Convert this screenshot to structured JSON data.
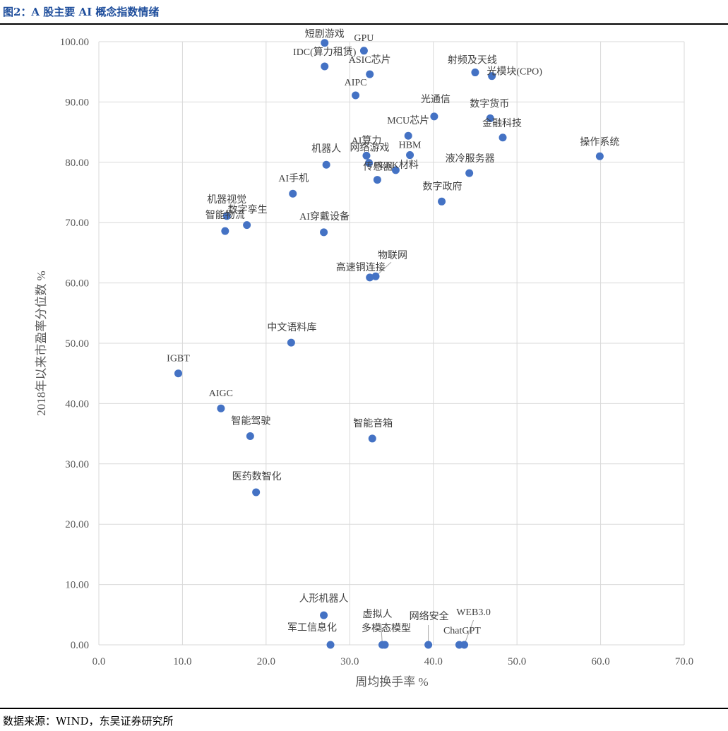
{
  "title": "图2：A 股主要 AI 概念指数情绪",
  "source": "数据来源：WIND，东吴证券研究所",
  "colors": {
    "point": "#4472c4",
    "grid": "#d9d9d9",
    "title": "#1f4e9c",
    "text": "#404040"
  },
  "chart_data": {
    "type": "scatter",
    "xlabel": "周均换手率 %",
    "ylabel": "2018年以来市盈率分位数 %",
    "xlim": [
      0,
      70
    ],
    "ylim": [
      0,
      100
    ],
    "xticks": [
      0,
      10,
      20,
      30,
      40,
      50,
      60,
      70
    ],
    "yticks": [
      0,
      10,
      20,
      30,
      40,
      50,
      60,
      70,
      80,
      90,
      100
    ],
    "xtick_labels": [
      "0.0",
      "10.0",
      "20.0",
      "30.0",
      "40.0",
      "50.0",
      "60.0",
      "70.0"
    ],
    "ytick_labels": [
      "0.00",
      "10.00",
      "20.00",
      "30.00",
      "40.00",
      "50.00",
      "60.00",
      "70.00",
      "80.00",
      "90.00",
      "100.00"
    ],
    "grid": true,
    "points": [
      {
        "label": "短剧游戏",
        "x": 27.0,
        "y": 99.8
      },
      {
        "label": "GPU",
        "x": 31.7,
        "y": 98.5
      },
      {
        "label": "IDC(算力租赁)",
        "x": 27.0,
        "y": 95.9
      },
      {
        "label": "ASIC芯片",
        "x": 32.4,
        "y": 94.6
      },
      {
        "label": "射频及天线",
        "x": 45.0,
        "y": 94.9
      },
      {
        "label": "光模块(CPO)",
        "x": 47.0,
        "y": 94.3
      },
      {
        "label": "AIPC",
        "x": 30.7,
        "y": 91.1
      },
      {
        "label": "光通信",
        "x": 40.1,
        "y": 87.6
      },
      {
        "label": "数字货币",
        "x": 46.8,
        "y": 87.3
      },
      {
        "label": "金融科技",
        "x": 48.3,
        "y": 84.1
      },
      {
        "label": "MCU芯片",
        "x": 37.0,
        "y": 84.4
      },
      {
        "label": "操作系统",
        "x": 59.9,
        "y": 81.0
      },
      {
        "label": "HBM",
        "x": 37.2,
        "y": 81.2
      },
      {
        "label": "AI算力",
        "x": 32.0,
        "y": 81.1
      },
      {
        "label": "网络游戏",
        "x": 32.3,
        "y": 79.9
      },
      {
        "label": "机器人",
        "x": 27.2,
        "y": 79.6
      },
      {
        "label": "PEEK材料",
        "x": 35.5,
        "y": 78.7
      },
      {
        "label": "液冷服务器",
        "x": 44.3,
        "y": 78.2
      },
      {
        "label": "传感器",
        "x": 33.3,
        "y": 77.1
      },
      {
        "label": "AI手机",
        "x": 23.2,
        "y": 74.8
      },
      {
        "label": "数字政府",
        "x": 41.0,
        "y": 73.5
      },
      {
        "label": "机器视觉",
        "x": 15.3,
        "y": 71.1
      },
      {
        "label": "数字孪生",
        "x": 17.7,
        "y": 69.6
      },
      {
        "label": "智能物流",
        "x": 15.1,
        "y": 68.6
      },
      {
        "label": "AI穿戴设备",
        "x": 26.9,
        "y": 68.4
      },
      {
        "label": "物联网",
        "x": 33.1,
        "y": 61.1
      },
      {
        "label": "高速铜连接",
        "x": 32.4,
        "y": 60.9
      },
      {
        "label": "中文语料库",
        "x": 23.0,
        "y": 50.1
      },
      {
        "label": "IGBT",
        "x": 9.5,
        "y": 45.0
      },
      {
        "label": "AIGC",
        "x": 14.6,
        "y": 39.2
      },
      {
        "label": "智能驾驶",
        "x": 18.1,
        "y": 34.6
      },
      {
        "label": "智能音箱",
        "x": 32.7,
        "y": 34.2
      },
      {
        "label": "医药数智化",
        "x": 18.8,
        "y": 25.3
      },
      {
        "label": "人形机器人",
        "x": 26.9,
        "y": 4.9
      },
      {
        "label": "军工信息化",
        "x": 27.7,
        "y": 0.0
      },
      {
        "label": "虚拟人",
        "x": 33.9,
        "y": 0.0
      },
      {
        "label": "多模态模型",
        "x": 34.2,
        "y": 0.0
      },
      {
        "label": "网络安全",
        "x": 39.4,
        "y": 0.0
      },
      {
        "label": "ChatGPT",
        "x": 43.1,
        "y": 0.0
      },
      {
        "label": "WEB3.0",
        "x": 43.7,
        "y": 0.0
      }
    ]
  }
}
